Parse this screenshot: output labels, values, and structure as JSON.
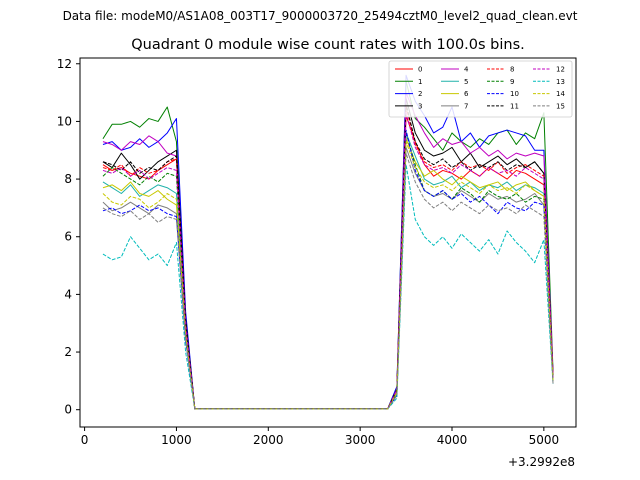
{
  "figure": {
    "suptitle": "Data file: modeM0/AS1A08_003T17_9000003720_25494cztM0_level2_quad_clean.evt",
    "title": "Quadrant 0 module wise count rates with 100.0s bins.",
    "x_offset_label": "+3.2992e8"
  },
  "chart_data": {
    "type": "line",
    "title": "Quadrant 0 module wise count rates with 100.0s bins.",
    "xlabel": "",
    "ylabel": "",
    "x_offset": "+3.2992e8",
    "xlim": [
      -50,
      5350
    ],
    "ylim": [
      -0.6,
      12.2
    ],
    "xticks": [
      0,
      1000,
      2000,
      3000,
      4000,
      5000
    ],
    "yticks": [
      0,
      2,
      4,
      6,
      8,
      10,
      12
    ],
    "grid": false,
    "legend": {
      "placement": "top-right",
      "columns": 4
    },
    "x": [
      200,
      300,
      400,
      500,
      600,
      700,
      800,
      900,
      1000,
      1100,
      1200,
      1300,
      1400,
      1500,
      1600,
      1700,
      1800,
      1900,
      2000,
      2100,
      2200,
      2300,
      2400,
      2500,
      2600,
      2700,
      2800,
      2900,
      3000,
      3100,
      3200,
      3300,
      3400,
      3500,
      3600,
      3700,
      3800,
      3900,
      4000,
      4100,
      4200,
      4300,
      4400,
      4500,
      4600,
      4700,
      4800,
      4900,
      5000,
      5100
    ],
    "series": [
      {
        "name": "0",
        "color": "#ff0000",
        "dash": "solid",
        "values": [
          8.5,
          8.3,
          8.4,
          8.2,
          8.1,
          8.0,
          8.3,
          8.5,
          8.7,
          3.0,
          0.03,
          0.03,
          0.03,
          0.03,
          0.03,
          0.03,
          0.03,
          0.03,
          0.03,
          0.03,
          0.03,
          0.03,
          0.03,
          0.03,
          0.03,
          0.03,
          0.03,
          0.03,
          0.03,
          0.03,
          0.03,
          0.03,
          0.7,
          10.2,
          9.3,
          8.5,
          8.1,
          8.3,
          8.2,
          8.0,
          8.3,
          8.1,
          8.4,
          8.2,
          8.0,
          8.3,
          8.2,
          8.0,
          7.8,
          1.2
        ]
      },
      {
        "name": "1",
        "color": "#008000",
        "dash": "solid",
        "values": [
          9.4,
          9.9,
          9.9,
          10.0,
          9.8,
          10.1,
          10.0,
          10.5,
          9.3,
          3.2,
          0.03,
          0.03,
          0.03,
          0.03,
          0.03,
          0.03,
          0.03,
          0.03,
          0.03,
          0.03,
          0.03,
          0.03,
          0.03,
          0.03,
          0.03,
          0.03,
          0.03,
          0.03,
          0.03,
          0.03,
          0.03,
          0.03,
          0.8,
          11.4,
          10.1,
          9.8,
          9.4,
          9.0,
          9.6,
          9.3,
          9.1,
          9.4,
          9.2,
          9.6,
          9.7,
          9.2,
          9.6,
          9.4,
          10.3,
          1.3
        ]
      },
      {
        "name": "2",
        "color": "#0000ff",
        "dash": "solid",
        "values": [
          9.2,
          9.3,
          9.0,
          9.1,
          9.4,
          9.1,
          9.3,
          9.6,
          10.1,
          3.4,
          0.03,
          0.03,
          0.03,
          0.03,
          0.03,
          0.03,
          0.03,
          0.03,
          0.03,
          0.03,
          0.03,
          0.03,
          0.03,
          0.03,
          0.03,
          0.03,
          0.03,
          0.03,
          0.03,
          0.03,
          0.03,
          0.03,
          0.8,
          11.6,
          10.7,
          10.2,
          9.6,
          9.8,
          10.5,
          9.3,
          9.6,
          9.1,
          9.5,
          9.6,
          9.7,
          9.6,
          9.5,
          9.0,
          9.0,
          1.2
        ]
      },
      {
        "name": "3",
        "color": "#000000",
        "dash": "solid",
        "values": [
          8.6,
          8.4,
          8.9,
          8.5,
          8.0,
          8.3,
          8.6,
          8.8,
          9.0,
          3.1,
          0.03,
          0.03,
          0.03,
          0.03,
          0.03,
          0.03,
          0.03,
          0.03,
          0.03,
          0.03,
          0.03,
          0.03,
          0.03,
          0.03,
          0.03,
          0.03,
          0.03,
          0.03,
          0.03,
          0.03,
          0.03,
          0.03,
          0.7,
          10.8,
          9.6,
          9.0,
          8.8,
          8.9,
          9.1,
          8.6,
          8.9,
          8.4,
          8.6,
          8.8,
          8.5,
          8.7,
          8.4,
          8.6,
          8.2,
          1.1
        ]
      },
      {
        "name": "4",
        "color": "#c000c0",
        "dash": "solid",
        "values": [
          9.3,
          9.2,
          9.0,
          9.3,
          9.2,
          9.5,
          9.3,
          8.9,
          8.8,
          3.0,
          0.03,
          0.03,
          0.03,
          0.03,
          0.03,
          0.03,
          0.03,
          0.03,
          0.03,
          0.03,
          0.03,
          0.03,
          0.03,
          0.03,
          0.03,
          0.03,
          0.03,
          0.03,
          0.03,
          0.03,
          0.03,
          0.03,
          0.7,
          11.0,
          10.2,
          9.6,
          9.1,
          9.4,
          9.2,
          9.3,
          8.9,
          9.1,
          8.8,
          9.0,
          8.7,
          8.9,
          8.8,
          8.9,
          8.8,
          1.2
        ]
      },
      {
        "name": "5",
        "color": "#20b2aa",
        "dash": "solid",
        "values": [
          7.9,
          7.7,
          7.5,
          7.8,
          7.4,
          7.6,
          7.8,
          7.7,
          7.5,
          2.7,
          0.03,
          0.03,
          0.03,
          0.03,
          0.03,
          0.03,
          0.03,
          0.03,
          0.03,
          0.03,
          0.03,
          0.03,
          0.03,
          0.03,
          0.03,
          0.03,
          0.03,
          0.03,
          0.03,
          0.03,
          0.03,
          0.03,
          0.6,
          9.6,
          8.8,
          8.0,
          7.8,
          7.9,
          8.1,
          7.7,
          7.9,
          7.6,
          7.8,
          7.7,
          7.9,
          7.6,
          7.8,
          7.7,
          7.5,
          1.1
        ]
      },
      {
        "name": "6",
        "color": "#c8c800",
        "dash": "solid",
        "values": [
          7.7,
          7.8,
          7.6,
          7.9,
          7.5,
          7.4,
          7.6,
          7.3,
          7.1,
          2.6,
          0.03,
          0.03,
          0.03,
          0.03,
          0.03,
          0.03,
          0.03,
          0.03,
          0.03,
          0.03,
          0.03,
          0.03,
          0.03,
          0.03,
          0.03,
          0.03,
          0.03,
          0.03,
          0.03,
          0.03,
          0.03,
          0.03,
          0.6,
          9.4,
          8.6,
          8.1,
          8.3,
          8.0,
          7.8,
          8.1,
          7.9,
          7.7,
          7.8,
          7.9,
          7.6,
          7.8,
          7.9,
          7.6,
          7.4,
          1.1
        ]
      },
      {
        "name": "7",
        "color": "#7f7f7f",
        "dash": "solid",
        "values": [
          7.2,
          6.9,
          7.0,
          7.2,
          7.0,
          6.8,
          7.1,
          7.0,
          6.8,
          2.5,
          0.03,
          0.03,
          0.03,
          0.03,
          0.03,
          0.03,
          0.03,
          0.03,
          0.03,
          0.03,
          0.03,
          0.03,
          0.03,
          0.03,
          0.03,
          0.03,
          0.03,
          0.03,
          0.03,
          0.03,
          0.03,
          0.03,
          0.5,
          9.1,
          8.2,
          7.6,
          7.4,
          7.5,
          7.3,
          7.6,
          7.4,
          7.2,
          7.5,
          7.3,
          7.4,
          7.2,
          7.3,
          7.5,
          7.1,
          1.0
        ]
      },
      {
        "name": "8",
        "color": "#ff0000",
        "dash": "dashed",
        "values": [
          8.4,
          8.3,
          8.5,
          8.1,
          8.4,
          8.2,
          8.3,
          8.6,
          8.7,
          3.0,
          0.03,
          0.03,
          0.03,
          0.03,
          0.03,
          0.03,
          0.03,
          0.03,
          0.03,
          0.03,
          0.03,
          0.03,
          0.03,
          0.03,
          0.03,
          0.03,
          0.03,
          0.03,
          0.03,
          0.03,
          0.03,
          0.03,
          0.7,
          10.5,
          9.2,
          8.6,
          8.4,
          8.5,
          8.3,
          8.6,
          8.4,
          8.5,
          8.3,
          8.6,
          8.2,
          8.4,
          8.5,
          8.3,
          8.1,
          1.2
        ]
      },
      {
        "name": "9",
        "color": "#008000",
        "dash": "dashed",
        "values": [
          8.1,
          8.4,
          8.2,
          8.0,
          7.8,
          8.1,
          7.9,
          8.2,
          8.1,
          2.9,
          0.03,
          0.03,
          0.03,
          0.03,
          0.03,
          0.03,
          0.03,
          0.03,
          0.03,
          0.03,
          0.03,
          0.03,
          0.03,
          0.03,
          0.03,
          0.03,
          0.03,
          0.03,
          0.03,
          0.03,
          0.03,
          0.03,
          0.6,
          9.6,
          8.5,
          7.6,
          7.4,
          7.6,
          7.3,
          7.7,
          7.5,
          7.2,
          7.6,
          7.4,
          7.3,
          7.5,
          7.2,
          7.4,
          7.3,
          1.0
        ]
      },
      {
        "name": "10",
        "color": "#0000ff",
        "dash": "dashed",
        "values": [
          6.9,
          7.0,
          6.8,
          6.9,
          7.1,
          6.9,
          7.0,
          6.8,
          6.7,
          2.4,
          0.03,
          0.03,
          0.03,
          0.03,
          0.03,
          0.03,
          0.03,
          0.03,
          0.03,
          0.03,
          0.03,
          0.03,
          0.03,
          0.03,
          0.03,
          0.03,
          0.03,
          0.03,
          0.03,
          0.03,
          0.03,
          0.03,
          0.5,
          9.7,
          8.3,
          7.6,
          7.4,
          7.6,
          7.3,
          7.5,
          7.2,
          7.4,
          7.1,
          6.8,
          7.2,
          7.0,
          6.9,
          7.2,
          7.1,
          1.0
        ]
      },
      {
        "name": "11",
        "color": "#000000",
        "dash": "dashed",
        "values": [
          8.6,
          8.5,
          8.3,
          8.6,
          8.2,
          8.4,
          8.3,
          8.6,
          8.8,
          3.1,
          0.03,
          0.03,
          0.03,
          0.03,
          0.03,
          0.03,
          0.03,
          0.03,
          0.03,
          0.03,
          0.03,
          0.03,
          0.03,
          0.03,
          0.03,
          0.03,
          0.03,
          0.03,
          0.03,
          0.03,
          0.03,
          0.03,
          0.7,
          10.6,
          9.3,
          8.7,
          8.5,
          8.7,
          8.4,
          8.6,
          8.3,
          8.5,
          8.4,
          8.6,
          8.3,
          8.5,
          8.4,
          8.6,
          8.2,
          1.1
        ]
      },
      {
        "name": "12",
        "color": "#c000c0",
        "dash": "dashed",
        "values": [
          8.3,
          8.2,
          8.4,
          8.1,
          8.3,
          8.0,
          8.2,
          8.4,
          8.3,
          2.9,
          0.03,
          0.03,
          0.03,
          0.03,
          0.03,
          0.03,
          0.03,
          0.03,
          0.03,
          0.03,
          0.03,
          0.03,
          0.03,
          0.03,
          0.03,
          0.03,
          0.03,
          0.03,
          0.03,
          0.03,
          0.03,
          0.03,
          0.7,
          10.3,
          9.1,
          8.5,
          8.3,
          8.4,
          8.2,
          8.5,
          8.3,
          8.1,
          8.4,
          8.2,
          8.3,
          8.1,
          8.4,
          8.2,
          8.0,
          1.1
        ]
      },
      {
        "name": "13",
        "color": "#00bcbc",
        "dash": "dashed",
        "values": [
          5.4,
          5.2,
          5.3,
          6.0,
          5.6,
          5.2,
          5.4,
          5.0,
          5.8,
          2.0,
          0.03,
          0.03,
          0.03,
          0.03,
          0.03,
          0.03,
          0.03,
          0.03,
          0.03,
          0.03,
          0.03,
          0.03,
          0.03,
          0.03,
          0.03,
          0.03,
          0.03,
          0.03,
          0.03,
          0.03,
          0.03,
          0.03,
          0.4,
          8.5,
          6.6,
          6.0,
          5.7,
          6.0,
          5.6,
          6.1,
          5.8,
          5.5,
          5.9,
          5.4,
          6.2,
          5.8,
          5.5,
          5.1,
          5.9,
          0.9
        ]
      },
      {
        "name": "14",
        "color": "#c8c800",
        "dash": "dashed",
        "values": [
          7.5,
          7.2,
          7.1,
          7.4,
          7.3,
          7.0,
          7.2,
          7.5,
          7.3,
          2.6,
          0.03,
          0.03,
          0.03,
          0.03,
          0.03,
          0.03,
          0.03,
          0.03,
          0.03,
          0.03,
          0.03,
          0.03,
          0.03,
          0.03,
          0.03,
          0.03,
          0.03,
          0.03,
          0.03,
          0.03,
          0.03,
          0.03,
          0.6,
          9.3,
          8.4,
          7.9,
          7.7,
          7.8,
          7.6,
          7.9,
          7.7,
          7.5,
          7.8,
          7.6,
          7.7,
          7.5,
          7.8,
          7.6,
          7.4,
          1.0
        ]
      },
      {
        "name": "15",
        "color": "#7f7f7f",
        "dash": "dashed",
        "values": [
          7.0,
          6.8,
          6.7,
          6.9,
          6.6,
          6.8,
          6.5,
          6.7,
          6.6,
          2.4,
          0.03,
          0.03,
          0.03,
          0.03,
          0.03,
          0.03,
          0.03,
          0.03,
          0.03,
          0.03,
          0.03,
          0.03,
          0.03,
          0.03,
          0.03,
          0.03,
          0.03,
          0.03,
          0.03,
          0.03,
          0.03,
          0.03,
          0.5,
          8.9,
          7.9,
          7.3,
          7.0,
          7.2,
          6.9,
          7.2,
          7.0,
          6.8,
          7.1,
          6.9,
          7.0,
          6.8,
          7.1,
          6.9,
          6.7,
          0.9
        ]
      }
    ]
  }
}
